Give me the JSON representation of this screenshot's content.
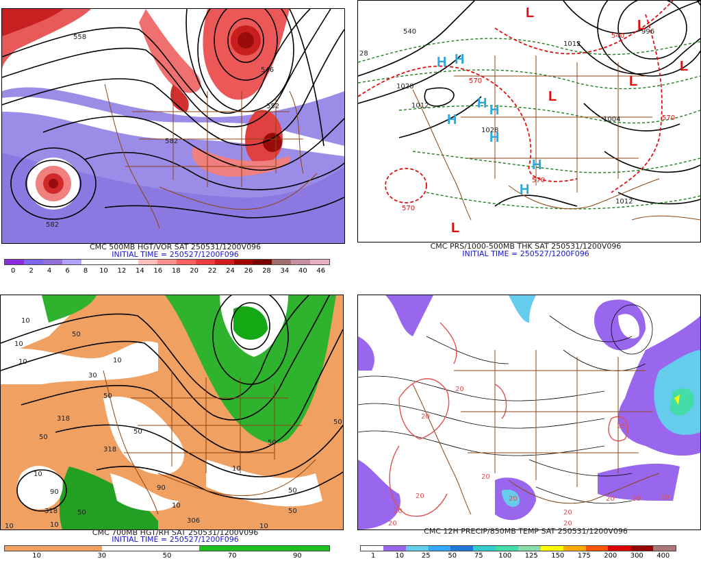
{
  "panels": [
    {
      "title": "CMC 500MB HGT/VOR SAT 250531/1200V096",
      "init": "INITIAL TIME = 250527/1200F096",
      "colorbar": {
        "colors": [
          "#8a2be2",
          "#7b68ee",
          "#9370db",
          "#b0a3ff",
          "#ffffff",
          "#ffffff",
          "#ffffff",
          "#ffc0c0",
          "#ff9090",
          "#ff6060",
          "#f03c3c",
          "#d11a1a",
          "#a30000",
          "#7a0000",
          "#a07070",
          "#c490a0",
          "#e8b0c0"
        ],
        "ticks": [
          "0",
          "2",
          "4",
          "6",
          "8",
          "10",
          "12",
          "14",
          "16",
          "18",
          "20",
          "22",
          "24",
          "26",
          "28",
          "34",
          "40",
          "46"
        ]
      },
      "labels": [
        "558",
        "546",
        "552",
        "582",
        "582"
      ]
    },
    {
      "title": "CMC PRS/1000-500MB THK SAT 250531/1200V096",
      "init": "INITIAL TIME = 250527/1200F096",
      "labels": [
        "540",
        "1020",
        "1012",
        "1012",
        "1004",
        "1028",
        "1012",
        "570",
        "540",
        "570",
        "570",
        "570",
        "996",
        "28"
      ],
      "highs": [
        "H",
        "H",
        "H",
        "H",
        "H",
        "H",
        "H",
        "H"
      ],
      "lows": [
        "L",
        "L",
        "L",
        "L",
        "L",
        "L"
      ]
    },
    {
      "title": "CMC 700MB HGT/RH SAT 250531/1200V096",
      "init": "INITIAL TIME = 250527/1200F096",
      "colorbar": {
        "colors": [
          "#f0a060",
          "#f0a060",
          "#f0a060",
          "#ffffff",
          "#ffffff",
          "#ffffff",
          "#20c020",
          "#20c020",
          "#20c020",
          "#20c020"
        ],
        "ticks": [
          "10",
          "30",
          "50",
          "70",
          "90"
        ]
      },
      "labels": [
        "10",
        "318",
        "50",
        "10",
        "90",
        "10",
        "50",
        "10",
        "30",
        "50",
        "318",
        "50",
        "10",
        "50",
        "90",
        "50",
        "10",
        "50",
        "10",
        "50",
        "10",
        "318",
        "10",
        "50",
        "10",
        "306"
      ]
    },
    {
      "title": "CMC 12H PRECIP/850MB TEMP SAT 250531/1200V096",
      "colorbar": {
        "colors": [
          "#ffffff",
          "#9966ee",
          "#66ccee",
          "#33aaff",
          "#2277dd",
          "#33cccc",
          "#44ddaa",
          "#88ddaa",
          "#ffff00",
          "#ffaa00",
          "#ff5500",
          "#dd0000",
          "#990000",
          "#aa7777"
        ],
        "ticks": [
          "1",
          "10",
          "25",
          "50",
          "75",
          "100",
          "125",
          "150",
          "175",
          "200",
          "300",
          "400"
        ]
      },
      "labels": [
        "20",
        "20",
        "20",
        "20",
        "20",
        "25",
        "20",
        "20",
        "20",
        "20",
        "20",
        "20",
        "20"
      ]
    }
  ]
}
